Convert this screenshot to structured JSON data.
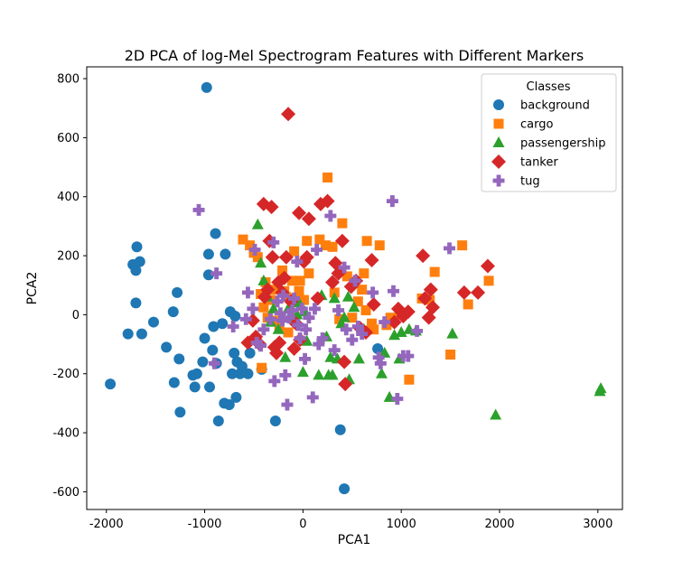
{
  "chart_data": {
    "type": "scatter",
    "title": "2D PCA of log-Mel Spectrogram Features with Different Markers",
    "xlabel": "PCA1",
    "ylabel": "PCA2",
    "xlim": [
      -2200,
      3250
    ],
    "ylim": [
      -660,
      840
    ],
    "xticks": [
      -2000,
      -1000,
      0,
      1000,
      2000,
      3000
    ],
    "yticks": [
      -600,
      -400,
      -200,
      0,
      200,
      400,
      600,
      800
    ],
    "grid": false,
    "legend": {
      "title": "Classes",
      "position": "top-right"
    },
    "series": [
      {
        "name": "background",
        "marker": "circle",
        "color": "#1f77b4",
        "points": [
          [
            -1960,
            -235
          ],
          [
            -1780,
            -65
          ],
          [
            -1730,
            170
          ],
          [
            -1700,
            150
          ],
          [
            -1690,
            230
          ],
          [
            -1700,
            40
          ],
          [
            -1660,
            180
          ],
          [
            -1640,
            -65
          ],
          [
            -1520,
            -25
          ],
          [
            -1390,
            -110
          ],
          [
            -1320,
            10
          ],
          [
            -1310,
            -230
          ],
          [
            -1280,
            75
          ],
          [
            -1260,
            -150
          ],
          [
            -1250,
            -330
          ],
          [
            -1120,
            -205
          ],
          [
            -1100,
            -245
          ],
          [
            -1080,
            -200
          ],
          [
            -1020,
            -160
          ],
          [
            -1000,
            -80
          ],
          [
            -980,
            770
          ],
          [
            -960,
            205
          ],
          [
            -960,
            135
          ],
          [
            -950,
            -245
          ],
          [
            -920,
            -120
          ],
          [
            -910,
            -40
          ],
          [
            -890,
            275
          ],
          [
            -880,
            -165
          ],
          [
            -860,
            -360
          ],
          [
            -820,
            -30
          ],
          [
            -800,
            -300
          ],
          [
            -790,
            205
          ],
          [
            -750,
            -305
          ],
          [
            -740,
            10
          ],
          [
            -720,
            -200
          ],
          [
            -700,
            -130
          ],
          [
            -690,
            -5
          ],
          [
            -680,
            -280
          ],
          [
            -670,
            -160
          ],
          [
            -640,
            -200
          ],
          [
            -620,
            -175
          ],
          [
            -560,
            -200
          ],
          [
            -540,
            -130
          ],
          [
            -420,
            -185
          ],
          [
            -280,
            -360
          ],
          [
            380,
            -390
          ],
          [
            420,
            -590
          ],
          [
            760,
            -115
          ]
        ]
      },
      {
        "name": "cargo",
        "marker": "square",
        "color": "#ff7f0e",
        "points": [
          [
            -610,
            255
          ],
          [
            -540,
            235
          ],
          [
            -500,
            210
          ],
          [
            -460,
            195
          ],
          [
            -430,
            70
          ],
          [
            -420,
            -180
          ],
          [
            -400,
            25
          ],
          [
            -380,
            110
          ],
          [
            -360,
            -10
          ],
          [
            -330,
            50
          ],
          [
            -300,
            85
          ],
          [
            -270,
            -20
          ],
          [
            -240,
            -40
          ],
          [
            -210,
            150
          ],
          [
            -190,
            80
          ],
          [
            -170,
            60
          ],
          [
            -150,
            -60
          ],
          [
            -110,
            115
          ],
          [
            -90,
            215
          ],
          [
            -70,
            55
          ],
          [
            -40,
            80
          ],
          [
            -30,
            115
          ],
          [
            10,
            50
          ],
          [
            40,
            250
          ],
          [
            60,
            140
          ],
          [
            170,
            255
          ],
          [
            230,
            235
          ],
          [
            250,
            465
          ],
          [
            300,
            230
          ],
          [
            320,
            75
          ],
          [
            370,
            -15
          ],
          [
            400,
            310
          ],
          [
            450,
            130
          ],
          [
            500,
            -10
          ],
          [
            560,
            45
          ],
          [
            600,
            85
          ],
          [
            620,
            140
          ],
          [
            640,
            15
          ],
          [
            650,
            250
          ],
          [
            700,
            -30
          ],
          [
            720,
            -50
          ],
          [
            780,
            235
          ],
          [
            850,
            -35
          ],
          [
            890,
            -10
          ],
          [
            980,
            0
          ],
          [
            1080,
            -220
          ],
          [
            1210,
            55
          ],
          [
            1290,
            50
          ],
          [
            1340,
            145
          ],
          [
            1500,
            -135
          ],
          [
            1620,
            235
          ],
          [
            1680,
            35
          ],
          [
            1890,
            115
          ]
        ]
      },
      {
        "name": "passengership",
        "marker": "triangle",
        "color": "#2ca02c",
        "points": [
          [
            -460,
            305
          ],
          [
            -430,
            175
          ],
          [
            -400,
            115
          ],
          [
            -360,
            60
          ],
          [
            -330,
            -25
          ],
          [
            -300,
            20
          ],
          [
            -250,
            -50
          ],
          [
            -180,
            -145
          ],
          [
            -150,
            20
          ],
          [
            -120,
            -5
          ],
          [
            -60,
            0
          ],
          [
            -40,
            40
          ],
          [
            0,
            -195
          ],
          [
            20,
            10
          ],
          [
            40,
            -90
          ],
          [
            160,
            -205
          ],
          [
            190,
            65
          ],
          [
            240,
            -75
          ],
          [
            260,
            -205
          ],
          [
            280,
            -145
          ],
          [
            300,
            -205
          ],
          [
            320,
            55
          ],
          [
            350,
            -150
          ],
          [
            390,
            -30
          ],
          [
            420,
            -10
          ],
          [
            460,
            60
          ],
          [
            470,
            -220
          ],
          [
            520,
            25
          ],
          [
            570,
            -150
          ],
          [
            620,
            -50
          ],
          [
            800,
            -200
          ],
          [
            830,
            -130
          ],
          [
            880,
            -280
          ],
          [
            930,
            -70
          ],
          [
            980,
            -150
          ],
          [
            1000,
            -60
          ],
          [
            1080,
            -50
          ],
          [
            1150,
            -55
          ],
          [
            1520,
            -65
          ],
          [
            1960,
            -340
          ],
          [
            3020,
            -260
          ],
          [
            3030,
            -250
          ]
        ]
      },
      {
        "name": "tanker",
        "marker": "diamond",
        "color": "#d62728",
        "points": [
          [
            -560,
            -95
          ],
          [
            -510,
            -20
          ],
          [
            -480,
            -75
          ],
          [
            -440,
            -100
          ],
          [
            -400,
            375
          ],
          [
            -390,
            60
          ],
          [
            -360,
            85
          ],
          [
            -340,
            250
          ],
          [
            -320,
            365
          ],
          [
            -310,
            195
          ],
          [
            -290,
            -110
          ],
          [
            -270,
            -130
          ],
          [
            -250,
            110
          ],
          [
            -240,
            -95
          ],
          [
            -210,
            75
          ],
          [
            -190,
            125
          ],
          [
            -170,
            195
          ],
          [
            -150,
            680
          ],
          [
            -120,
            45
          ],
          [
            -90,
            -115
          ],
          [
            -70,
            -30
          ],
          [
            -40,
            345
          ],
          [
            -30,
            -85
          ],
          [
            10,
            180
          ],
          [
            40,
            195
          ],
          [
            60,
            325
          ],
          [
            150,
            55
          ],
          [
            180,
            375
          ],
          [
            250,
            385
          ],
          [
            300,
            110
          ],
          [
            330,
            175
          ],
          [
            360,
            140
          ],
          [
            400,
            250
          ],
          [
            420,
            -160
          ],
          [
            430,
            -235
          ],
          [
            490,
            95
          ],
          [
            540,
            115
          ],
          [
            580,
            -45
          ],
          [
            640,
            -60
          ],
          [
            700,
            185
          ],
          [
            720,
            35
          ],
          [
            930,
            -25
          ],
          [
            970,
            20
          ],
          [
            1020,
            -5
          ],
          [
            1070,
            10
          ],
          [
            1220,
            200
          ],
          [
            1240,
            55
          ],
          [
            1280,
            -10
          ],
          [
            1300,
            85
          ],
          [
            1320,
            25
          ],
          [
            1640,
            75
          ],
          [
            1780,
            75
          ],
          [
            1880,
            165
          ]
        ]
      },
      {
        "name": "tug",
        "marker": "plus",
        "color": "#9467bd",
        "points": [
          [
            -1060,
            355
          ],
          [
            -900,
            -165
          ],
          [
            -880,
            140
          ],
          [
            -710,
            -40
          ],
          [
            -580,
            -15
          ],
          [
            -560,
            75
          ],
          [
            -510,
            20
          ],
          [
            -490,
            220
          ],
          [
            -470,
            -95
          ],
          [
            -430,
            -105
          ],
          [
            -400,
            -50
          ],
          [
            -330,
            -15
          ],
          [
            -300,
            245
          ],
          [
            -290,
            -225
          ],
          [
            -260,
            45
          ],
          [
            -230,
            5
          ],
          [
            -210,
            -20
          ],
          [
            -200,
            65
          ],
          [
            -180,
            -205
          ],
          [
            -160,
            -305
          ],
          [
            -140,
            -10
          ],
          [
            -110,
            15
          ],
          [
            -90,
            55
          ],
          [
            -60,
            180
          ],
          [
            -50,
            -35
          ],
          [
            -30,
            -80
          ],
          [
            -10,
            20
          ],
          [
            20,
            -150
          ],
          [
            30,
            -50
          ],
          [
            60,
            -10
          ],
          [
            100,
            -280
          ],
          [
            120,
            20
          ],
          [
            140,
            220
          ],
          [
            160,
            -100
          ],
          [
            200,
            -80
          ],
          [
            280,
            335
          ],
          [
            320,
            -120
          ],
          [
            360,
            15
          ],
          [
            420,
            160
          ],
          [
            440,
            -50
          ],
          [
            500,
            -85
          ],
          [
            530,
            115
          ],
          [
            560,
            -40
          ],
          [
            600,
            -65
          ],
          [
            710,
            75
          ],
          [
            770,
            -145
          ],
          [
            790,
            -165
          ],
          [
            830,
            -25
          ],
          [
            910,
            385
          ],
          [
            920,
            80
          ],
          [
            960,
            -285
          ],
          [
            1020,
            -140
          ],
          [
            1070,
            -140
          ],
          [
            1160,
            -55
          ],
          [
            1490,
            225
          ]
        ]
      }
    ]
  }
}
